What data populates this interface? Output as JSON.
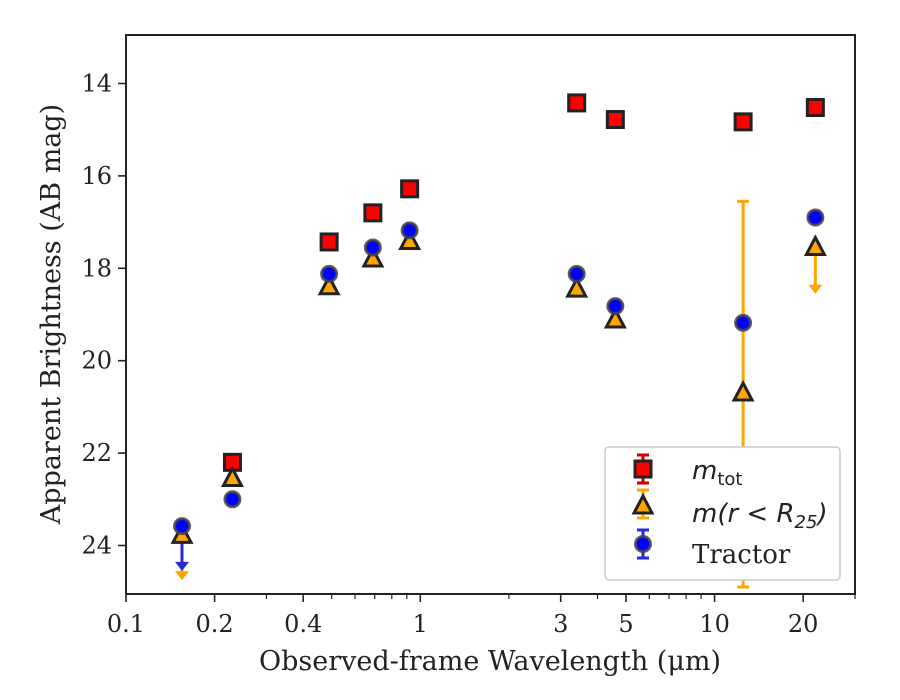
{
  "chart_data": {
    "type": "scatter",
    "xlabel": "Observed-frame Wavelength (μm)",
    "ylabel": "Apparent Brightness (AB mag)",
    "xscale": "log",
    "xlim": [
      0.1,
      30
    ],
    "ylim": [
      25.05,
      12.95
    ],
    "y_inverted": true,
    "x_ticks": [
      {
        "value": 0.1,
        "label": "0.1"
      },
      {
        "value": 0.2,
        "label": "0.2"
      },
      {
        "value": 0.4,
        "label": "0.4"
      },
      {
        "value": 1,
        "label": "1"
      },
      {
        "value": 3,
        "label": "3"
      },
      {
        "value": 5,
        "label": "5"
      },
      {
        "value": 10,
        "label": "10"
      },
      {
        "value": 20,
        "label": "20"
      }
    ],
    "x_minor_ticks": [
      0.3,
      0.5,
      0.6,
      0.7,
      0.8,
      0.9,
      2,
      4,
      6,
      7,
      8,
      9,
      30
    ],
    "y_ticks": [
      14,
      16,
      18,
      20,
      22,
      24
    ],
    "legend_position": "lower-right",
    "series": [
      {
        "name": "m_tot",
        "marker": "square",
        "fill": "#ff0000",
        "edge": "#222222",
        "points": [
          {
            "x": 0.23,
            "y": 22.2
          },
          {
            "x": 0.49,
            "y": 17.43
          },
          {
            "x": 0.69,
            "y": 16.8
          },
          {
            "x": 0.92,
            "y": 16.28
          },
          {
            "x": 3.4,
            "y": 14.42
          },
          {
            "x": 4.6,
            "y": 14.78
          },
          {
            "x": 12.5,
            "y": 14.83
          },
          {
            "x": 22.0,
            "y": 14.52
          }
        ]
      },
      {
        "name": "m(r<R25)",
        "marker": "triangle",
        "fill": "#ffa500",
        "edge": "#222222",
        "errcolor": "#ffa500",
        "points": [
          {
            "x": 0.155,
            "y": 23.78,
            "upper_limit": true,
            "arrow_to": 24.75
          },
          {
            "x": 0.23,
            "y": 22.55
          },
          {
            "x": 0.49,
            "y": 18.4
          },
          {
            "x": 0.69,
            "y": 17.8
          },
          {
            "x": 0.92,
            "y": 17.42
          },
          {
            "x": 3.4,
            "y": 18.45
          },
          {
            "x": 4.6,
            "y": 19.12
          },
          {
            "x": 12.5,
            "y": 20.7,
            "err_low": 16.55,
            "err_high": 24.9
          },
          {
            "x": 22.0,
            "y": 17.55,
            "upper_limit": true,
            "arrow_to": 18.55
          }
        ]
      },
      {
        "name": "Tractor",
        "marker": "circle",
        "fill": "#0000ff",
        "edge": "#444444",
        "errcolor": "#2a2ad8",
        "points": [
          {
            "x": 0.155,
            "y": 23.58,
            "upper_limit": true,
            "arrow_to": 24.55
          },
          {
            "x": 0.23,
            "y": 23.0
          },
          {
            "x": 0.49,
            "y": 18.12
          },
          {
            "x": 0.69,
            "y": 17.55
          },
          {
            "x": 0.92,
            "y": 17.18
          },
          {
            "x": 3.4,
            "y": 18.12
          },
          {
            "x": 4.6,
            "y": 18.82
          },
          {
            "x": 12.5,
            "y": 19.18
          },
          {
            "x": 22.0,
            "y": 16.9
          }
        ]
      }
    ]
  },
  "legend": {
    "m_tot_base": "m",
    "m_tot_sub": "tot",
    "m_r_main": "m(r < R",
    "m_r_sub": "25",
    "m_r_close": ")",
    "tractor": "Tractor"
  }
}
